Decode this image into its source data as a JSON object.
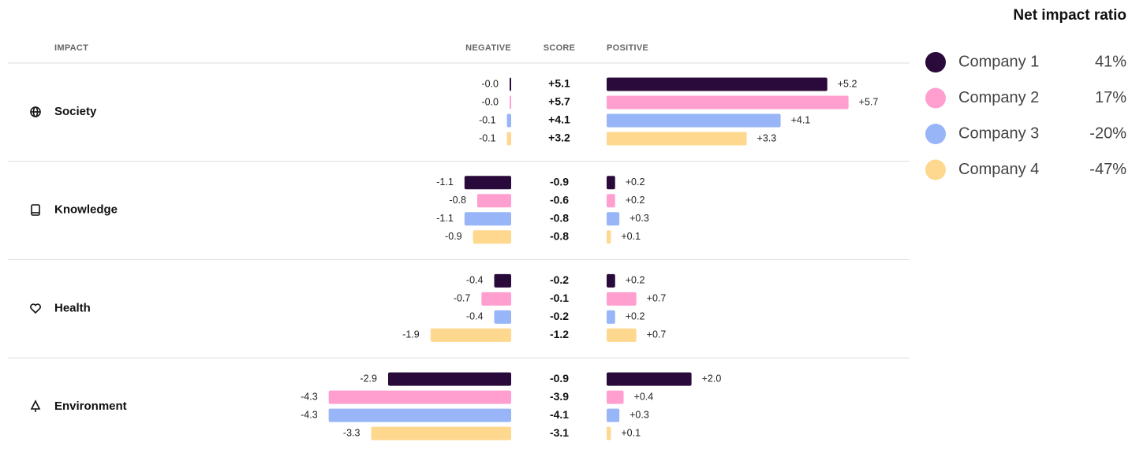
{
  "table": {
    "headers": {
      "impact": "IMPACT",
      "negative": "NEGATIVE",
      "score": "SCORE",
      "positive": "POSITIVE"
    },
    "rows": [
      {
        "label": "Society",
        "negative": [
          -0.0,
          -0.0,
          -0.1,
          -0.1
        ],
        "negative_labels": [
          "-0.0",
          "-0.0",
          "-0.1",
          "-0.1"
        ],
        "score": [
          5.1,
          5.7,
          4.1,
          3.2
        ],
        "score_labels": [
          "+5.1",
          "+5.7",
          "+4.1",
          "+3.2"
        ],
        "positive": [
          5.2,
          5.7,
          4.1,
          3.3
        ],
        "positive_labels": [
          "+5.2",
          "+5.7",
          "+4.1",
          "+3.3"
        ]
      },
      {
        "label": "Knowledge",
        "negative": [
          -1.1,
          -0.8,
          -1.1,
          -0.9
        ],
        "negative_labels": [
          "-1.1",
          "-0.8",
          "-1.1",
          "-0.9"
        ],
        "score": [
          -0.9,
          -0.6,
          -0.8,
          -0.8
        ],
        "score_labels": [
          "-0.9",
          "-0.6",
          "-0.8",
          "-0.8"
        ],
        "positive": [
          0.2,
          0.2,
          0.3,
          0.1
        ],
        "positive_labels": [
          "+0.2",
          "+0.2",
          "+0.3",
          "+0.1"
        ]
      },
      {
        "label": "Health",
        "negative": [
          -0.4,
          -0.7,
          -0.4,
          -1.9
        ],
        "negative_labels": [
          "-0.4",
          "-0.7",
          "-0.4",
          "-1.9"
        ],
        "score": [
          -0.2,
          -0.1,
          -0.2,
          -1.2
        ],
        "score_labels": [
          "-0.2",
          "-0.1",
          "-0.2",
          "-1.2"
        ],
        "positive": [
          0.2,
          0.7,
          0.2,
          0.7
        ],
        "positive_labels": [
          "+0.2",
          "+0.7",
          "+0.2",
          "+0.7"
        ]
      },
      {
        "label": "Environment",
        "negative": [
          -2.9,
          -4.3,
          -4.3,
          -3.3
        ],
        "negative_labels": [
          "-2.9",
          "-4.3",
          "-4.3",
          "-3.3"
        ],
        "score": [
          -0.9,
          -3.9,
          -4.1,
          -3.1
        ],
        "score_labels": [
          "-0.9",
          "-3.9",
          "-4.1",
          "-3.1"
        ],
        "positive": [
          2.0,
          0.4,
          0.3,
          0.1
        ],
        "positive_labels": [
          "+2.0",
          "+0.4",
          "+0.3",
          "+0.1"
        ]
      }
    ]
  },
  "legend": {
    "title": "Net impact ratio",
    "items": [
      {
        "name": "Company 1",
        "color": "#2a0a3a",
        "ratio": 41,
        "ratio_label": "41%"
      },
      {
        "name": "Company 2",
        "color": "#ff9fd0",
        "ratio": 17,
        "ratio_label": "17%"
      },
      {
        "name": "Company 3",
        "color": "#97b5f7",
        "ratio": -20,
        "ratio_label": "-20%"
      },
      {
        "name": "Company 4",
        "color": "#fdd88e",
        "ratio": -47,
        "ratio_label": "-47%"
      }
    ]
  }
}
